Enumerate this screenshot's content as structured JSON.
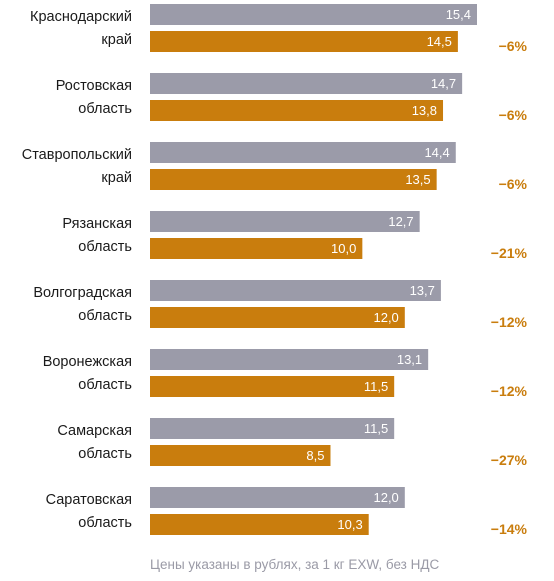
{
  "chart_data": {
    "type": "bar",
    "orientation": "horizontal",
    "categories": [
      [
        "Краснодарский",
        "край"
      ],
      [
        "Ростовская",
        "область"
      ],
      [
        "Ставропольский",
        "край"
      ],
      [
        "Рязанская",
        "область"
      ],
      [
        "Волгоградская",
        "область"
      ],
      [
        "Воронежская",
        "область"
      ],
      [
        "Самарская",
        "область"
      ],
      [
        "Саратовская",
        "область"
      ]
    ],
    "series": [
      {
        "values": [
          15.4,
          14.7,
          14.4,
          12.7,
          13.7,
          13.1,
          11.5,
          12.0
        ],
        "labels": [
          "15,4",
          "14,7",
          "14,4",
          "12,7",
          "13,7",
          "13,1",
          "11,5",
          "12,0"
        ],
        "color": "#9b9ba9"
      },
      {
        "values": [
          14.5,
          13.8,
          13.5,
          10.0,
          12.0,
          11.5,
          8.5,
          10.3
        ],
        "labels": [
          "14,5",
          "13,8",
          "13,5",
          "10,0",
          "12,0",
          "11,5",
          "8,5",
          "10,3"
        ],
        "color": "#c97d0d"
      }
    ],
    "changes": [
      "−6%",
      "−6%",
      "−6%",
      "−21%",
      "−12%",
      "−12%",
      "−27%",
      "−14%"
    ],
    "change_color": "#c97d0d",
    "xlim": [
      0,
      15.4
    ],
    "grid": false,
    "legend": "none",
    "footnote": "Цены указаны в рублях, за 1 кг EXW, без НДС"
  }
}
